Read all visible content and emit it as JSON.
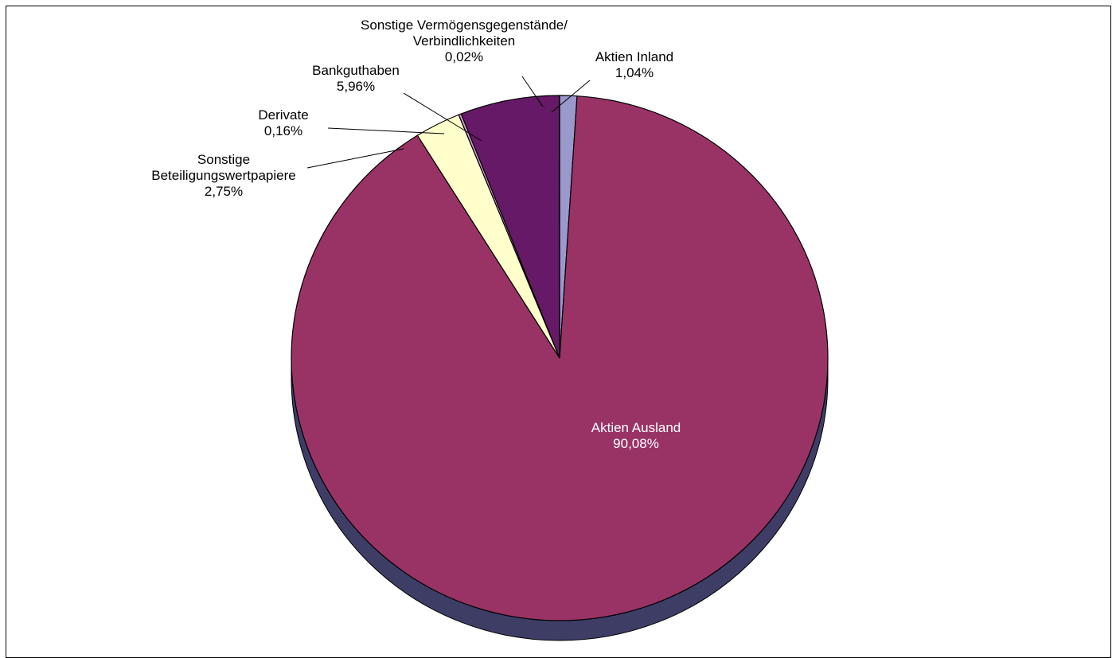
{
  "chart_data": {
    "type": "pie",
    "title": "",
    "slices": [
      {
        "name_lines": [
          "Aktien Inland"
        ],
        "value": 1.04,
        "label": "1,04%",
        "color": "#9999cc",
        "side": "#5a5a8a"
      },
      {
        "name_lines": [
          "Aktien Ausland"
        ],
        "value": 90.08,
        "label": "90,08%",
        "color": "#993366",
        "side": "#3d3d66"
      },
      {
        "name_lines": [
          "Sonstige",
          "Beteiligungswertpapiere"
        ],
        "value": 2.75,
        "label": "2,75%",
        "color": "#ffffcc",
        "side": "#a8a880"
      },
      {
        "name_lines": [
          "Derivate"
        ],
        "value": 0.16,
        "label": "0,16%",
        "color": "#cc99cc",
        "side": "#6a4a6a"
      },
      {
        "name_lines": [
          "Bankguthaben"
        ],
        "value": 5.96,
        "label": "5,96%",
        "color": "#661966",
        "side": "#3a0f3a"
      },
      {
        "name_lines": [
          "Sonstige Vermögensgegenstände/",
          "Verbindlichkeiten"
        ],
        "value": 0.02,
        "label": "0,02%",
        "color": "#3399ff",
        "side": "#1a4d80"
      }
    ],
    "legend": "none",
    "labels_position": "outside with leader lines (largest slice labeled inside)"
  }
}
